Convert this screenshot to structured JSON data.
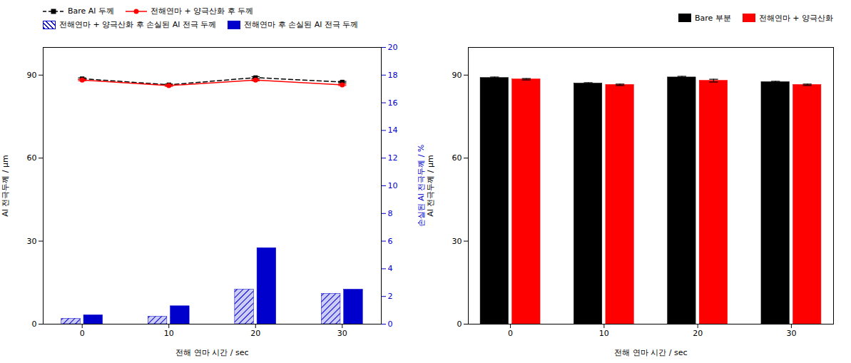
{
  "chart_data": [
    {
      "type": "line",
      "x": [
        0,
        10,
        20,
        30
      ],
      "xlim": [
        -4.5,
        34.5
      ],
      "xticks": [
        0,
        10,
        20,
        30
      ],
      "ylim": [
        0,
        100
      ],
      "yticks": [
        0,
        30,
        60,
        90
      ],
      "y2lim": [
        0,
        20
      ],
      "y2ticks": [
        0,
        2,
        4,
        6,
        8,
        10,
        12,
        14,
        16,
        18,
        20
      ],
      "xlabel": "전해 연마 시간 / sec",
      "ylabel": "Al 전극두께 / μm",
      "y2label": "손실된 Al 전극두께 / %",
      "grid": false,
      "legend": "center left",
      "series": [
        {
          "name": "Bare Al 두께",
          "type": "line",
          "color": "black",
          "line_style": "dashed",
          "marker": "square",
          "values": [
            88.7,
            86.5,
            89.1,
            87.5
          ],
          "errors": [
            0.3,
            0.25,
            0.35,
            0.25
          ]
        },
        {
          "name": "전해연마 + 양극산화 후 두께",
          "type": "line",
          "color": "red",
          "line_style": "solid",
          "marker": "circle",
          "values": [
            88.2,
            86.2,
            88.2,
            86.5
          ],
          "errors": [
            0.25,
            0.25,
            0.3,
            0.25
          ]
        },
        {
          "name": "전해연마 + 양극산화 후 손실된 Al 전극 두께",
          "type": "bar",
          "axis": "y2",
          "color": "#0000cc",
          "values": [
            0.4,
            0.55,
            2.5,
            2.2
          ]
        },
        {
          "name": "전해연마 후 손실된 Al 전극 두께",
          "type": "bar",
          "axis": "y2",
          "color": "#0000cc",
          "values": [
            0.65,
            1.3,
            5.5,
            2.5
          ]
        }
      ]
    },
    {
      "type": "bar",
      "x": [
        0,
        10,
        20,
        30
      ],
      "xlim": [
        -4.5,
        34.5
      ],
      "xticks": [
        0,
        10,
        20,
        30
      ],
      "ylim": [
        0,
        100
      ],
      "yticks": [
        0,
        30,
        60,
        90
      ],
      "xlabel": "전해 연마 시간 / sec",
      "ylabel": "Al 전극두께 / μm",
      "grid": false,
      "legend": "upper right",
      "series": [
        {
          "name": "Bare 부분",
          "color": "black",
          "values": [
            89.0,
            87.0,
            89.2,
            87.5
          ],
          "errors": [
            0.3,
            0.25,
            0.35,
            0.25
          ]
        },
        {
          "name": "전해연마 + 양극산화",
          "color": "red",
          "values": [
            88.5,
            86.5,
            88.0,
            86.5
          ],
          "errors": [
            0.25,
            0.25,
            0.5,
            0.25
          ]
        }
      ]
    }
  ]
}
